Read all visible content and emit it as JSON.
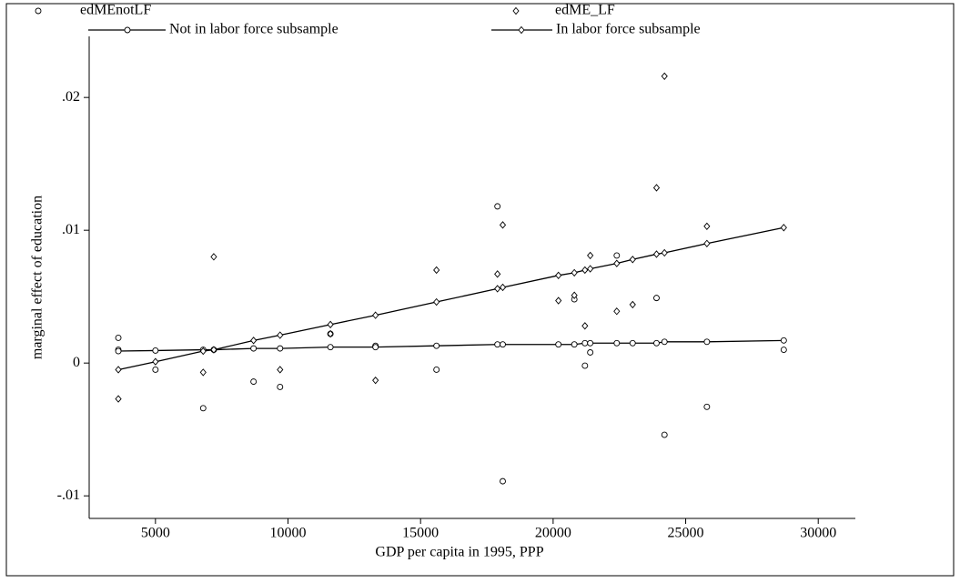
{
  "chart_data": {
    "type": "scatter",
    "xlabel": "GDP per capita in 1995, PPP",
    "ylabel": "marginal effect of education",
    "xlim": [
      2500,
      31400
    ],
    "xticks": [
      5000,
      10000,
      15000,
      20000,
      25000,
      30000
    ],
    "ylim": [
      -0.0117,
      0.0246
    ],
    "yticks": [
      {
        "value": 0.02,
        "label": ".02"
      },
      {
        "value": 0.01,
        "label": ".01"
      },
      0,
      {
        "value": -0.01,
        "label": "-.01"
      }
    ],
    "legend": "top",
    "series": [
      {
        "name": "edMEnotLF",
        "kind": "scatter",
        "marker": "circle",
        "color": "#000000",
        "x": [
          3600,
          3600,
          5000,
          6800,
          8700,
          9700,
          11600,
          13300,
          15600,
          17900,
          18100,
          20800,
          21200,
          21400,
          22400,
          23900,
          24200,
          25800,
          28700
        ],
        "values": [
          0.0019,
          0.001,
          -0.0005,
          -0.0034,
          -0.0014,
          -0.0018,
          0.0022,
          0.0013,
          -0.0005,
          0.0118,
          -0.0089,
          0.0048,
          -0.0002,
          0.0008,
          0.0081,
          0.0049,
          -0.0054,
          -0.0033,
          0.001
        ]
      },
      {
        "name": "edME_LF",
        "kind": "scatter",
        "marker": "diamond",
        "color": "#000000",
        "x": [
          3600,
          6800,
          7200,
          9700,
          11600,
          13300,
          15600,
          17900,
          18100,
          20200,
          20800,
          21200,
          21400,
          22400,
          23000,
          23900,
          24200,
          25800
        ],
        "values": [
          -0.0027,
          -0.0007,
          0.008,
          -0.0005,
          0.0022,
          -0.0013,
          0.007,
          0.0067,
          0.0104,
          0.0047,
          0.0051,
          0.0028,
          0.0081,
          0.0039,
          0.0044,
          0.0132,
          0.0216,
          0.0103
        ]
      },
      {
        "name": "Not in labor force subsample",
        "kind": "line",
        "marker": "circle",
        "color": "#000000",
        "x": [
          3600,
          5000,
          6800,
          7200,
          8700,
          9700,
          11600,
          13300,
          15600,
          17900,
          18100,
          20200,
          20800,
          21200,
          21400,
          22400,
          23000,
          23900,
          24200,
          25800,
          28700
        ],
        "values": [
          0.0009,
          0.00094,
          0.001,
          0.001,
          0.0011,
          0.0011,
          0.0012,
          0.0012,
          0.0013,
          0.0014,
          0.0014,
          0.0014,
          0.0014,
          0.0015,
          0.0015,
          0.0015,
          0.0015,
          0.0015,
          0.0016,
          0.0016,
          0.0017
        ]
      },
      {
        "name": "In labor force subsample",
        "kind": "line",
        "marker": "diamond",
        "color": "#000000",
        "x": [
          3600,
          5000,
          6800,
          7200,
          8700,
          9700,
          11600,
          13300,
          15600,
          17900,
          18100,
          20200,
          20800,
          21200,
          21400,
          22400,
          23000,
          23900,
          24200,
          25800,
          28700
        ],
        "values": [
          -0.0005,
          0.0001,
          0.0009,
          0.001,
          0.0017,
          0.0021,
          0.0029,
          0.0036,
          0.0046,
          0.0056,
          0.0057,
          0.0066,
          0.0068,
          0.007,
          0.0071,
          0.0075,
          0.0078,
          0.0082,
          0.0083,
          0.009,
          0.0102
        ]
      }
    ]
  }
}
